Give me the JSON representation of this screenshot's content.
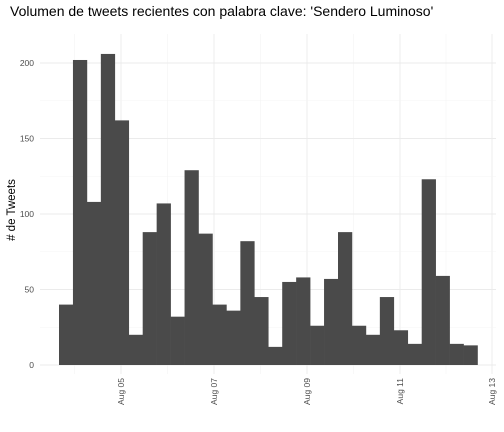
{
  "chart_data": {
    "type": "bar",
    "title": "Volumen de tweets recientes con palabra clave: 'Sendero Luminoso'",
    "xlabel": "",
    "ylabel": "# de Tweets",
    "x_tick_labels": [
      "Aug 05",
      "Aug 07",
      "Aug 09",
      "Aug 11",
      "Aug 13"
    ],
    "y_ticks": [
      0,
      50,
      100,
      150,
      200
    ],
    "ylim": [
      0,
      215
    ],
    "bar_color": "#4a4a4a",
    "values": [
      40,
      202,
      108,
      206,
      162,
      20,
      88,
      107,
      32,
      129,
      87,
      40,
      36,
      82,
      45,
      12,
      55,
      58,
      26,
      57,
      88,
      26,
      20,
      45,
      23,
      14,
      123,
      59,
      14,
      13
    ],
    "grid": true,
    "legend": "none"
  }
}
